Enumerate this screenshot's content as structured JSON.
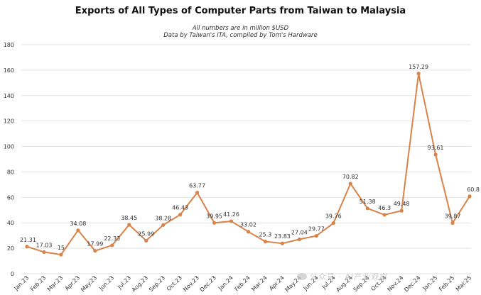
{
  "chart_data": {
    "type": "line",
    "title": "Exports of All Types of Computer Parts from Taiwan to Malaysia",
    "subtitle_lines": [
      "All numbers are in million $USD",
      "Data by Taiwan's ITA, compiled by Tom's Hardware"
    ],
    "xlabel": "",
    "ylabel": "",
    "ylim": [
      0,
      180
    ],
    "y_ticks": [
      0,
      20,
      40,
      60,
      80,
      100,
      120,
      140,
      160,
      180
    ],
    "grid": true,
    "line_color": "#d9834a",
    "categories": [
      "Jan.23",
      "Feb.23",
      "Mar.23",
      "Apr.23",
      "May.23",
      "Jun.23",
      "Jul.23",
      "Aug.23",
      "Sep.23",
      "Oct.23",
      "Nov.23",
      "Dec.23",
      "Jan.24",
      "Feb.24",
      "Mar.24",
      "Apr.24",
      "May.24",
      "Jun.24",
      "Jul.24",
      "Aug.24",
      "Sep.24",
      "Oct.24",
      "Nov.24",
      "Dec.24",
      "Jan.25",
      "Feb.25",
      "Mar.25"
    ],
    "values": [
      21.31,
      17.03,
      15,
      34.08,
      17.99,
      22.33,
      38.45,
      25.99,
      38.28,
      46.43,
      63.77,
      39.95,
      41.26,
      33.02,
      25.3,
      23.83,
      27.04,
      29.77,
      39.76,
      70.82,
      51.38,
      46.3,
      49.48,
      157.29,
      93.61,
      39.87,
      60.8
    ],
    "data_labels": [
      "21.31",
      "17.03",
      "15",
      "34.08",
      "17.99",
      "22.33",
      "38.45",
      "25.99",
      "38.28",
      "46.43",
      "63.77",
      "39.95",
      "41.26",
      "33.02",
      "25.3",
      "23.83",
      "27.04",
      "29.77",
      "39.76",
      "70.82",
      "51.38",
      "46.3",
      "49.48",
      "157.29",
      "93.61",
      "39.87",
      "60.8"
    ]
  },
  "watermark": {
    "icon": "wechat-logo-icon",
    "text": "公众号 · AI产业观察"
  }
}
